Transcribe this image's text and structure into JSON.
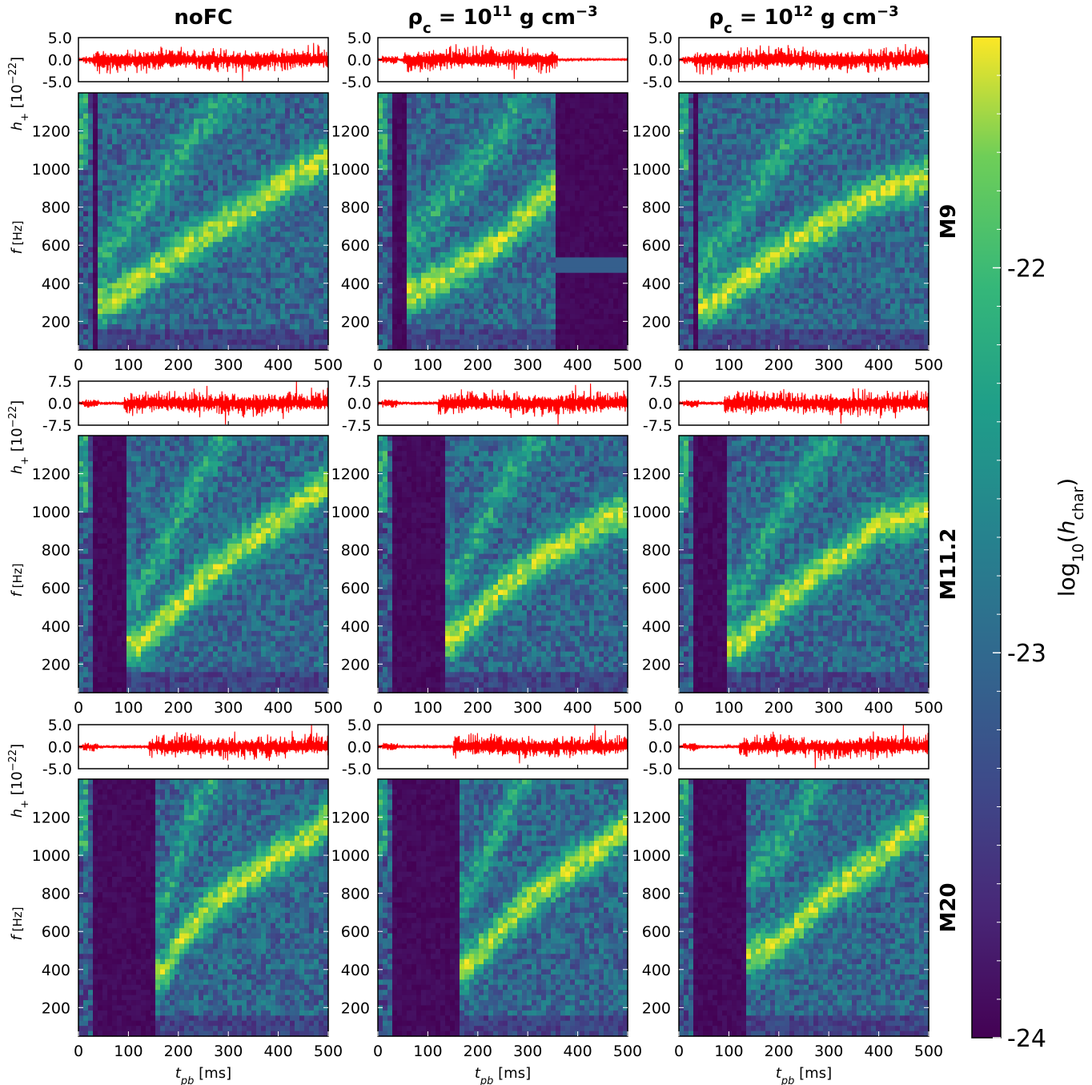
{
  "chart_data": {
    "type": "heatmap",
    "columns": [
      {
        "key": "nofc",
        "label": "noFC"
      },
      {
        "key": "rho11",
        "label": "ρ_c = 10^11 g cm^-3",
        "label_parts": [
          "ρ",
          "c",
          " = 10",
          "11",
          " g cm",
          "−3"
        ]
      },
      {
        "key": "rho12",
        "label": "ρ_c = 10^12 g cm^-3",
        "label_parts": [
          "ρ",
          "c",
          " = 10",
          "12",
          " g cm",
          "−3"
        ]
      }
    ],
    "rows": [
      {
        "label": "M9",
        "strain_ylim": [
          -5.0,
          5.0
        ],
        "strain_ticks": [
          "5.0",
          "0.0",
          "-5.0"
        ],
        "ridges": [
          [
            [
              60,
              300
            ],
            [
              200,
              560
            ],
            [
              280,
              700
            ],
            [
              350,
              800
            ],
            [
              420,
              950
            ],
            [
              500,
              1060
            ]
          ],
          [
            [
              80,
              350
            ],
            [
              200,
              540
            ],
            [
              260,
              650
            ],
            [
              280,
              720
            ],
            [
              350,
              900
            ],
            [
              500,
              1000
            ]
          ],
          [
            [
              60,
              280
            ],
            [
              140,
              440
            ],
            [
              220,
              600
            ],
            [
              300,
              720
            ],
            [
              380,
              860
            ],
            [
              500,
              960
            ]
          ]
        ],
        "late_cutoff": [
          500,
          360,
          500
        ]
      },
      {
        "label": "M11.2",
        "strain_ylim": [
          -7.5,
          7.5
        ],
        "strain_ticks": [
          "7.5",
          "0.0",
          "-7.5"
        ],
        "ridges": [
          [
            [
              120,
              300
            ],
            [
              190,
              480
            ],
            [
              250,
              650
            ],
            [
              320,
              800
            ],
            [
              400,
              950
            ],
            [
              500,
              1150
            ]
          ],
          [
            [
              150,
              330
            ],
            [
              250,
              600
            ],
            [
              320,
              740
            ],
            [
              400,
              880
            ],
            [
              460,
              960
            ],
            [
              500,
              1000
            ]
          ],
          [
            [
              120,
              300
            ],
            [
              200,
              520
            ],
            [
              260,
              640
            ],
            [
              300,
              720
            ],
            [
              400,
              930
            ],
            [
              500,
              1000
            ]
          ]
        ],
        "late_cutoff": [
          500,
          500,
          500
        ]
      },
      {
        "label": "M20",
        "strain_ylim": [
          -5.0,
          5.0
        ],
        "strain_ticks": [
          "5.0",
          "0.0",
          "-5.0"
        ],
        "ridges": [
          [
            [
              170,
              380
            ],
            [
              210,
              580
            ],
            [
              260,
              720
            ],
            [
              320,
              850
            ],
            [
              400,
              1000
            ],
            [
              470,
              1100
            ],
            [
              500,
              1200
            ]
          ],
          [
            [
              180,
              420
            ],
            [
              250,
              620
            ],
            [
              300,
              760
            ],
            [
              380,
              920
            ],
            [
              470,
              1090
            ],
            [
              500,
              1150
            ]
          ],
          [
            [
              150,
              480
            ],
            [
              210,
              560
            ],
            [
              300,
              800
            ],
            [
              380,
              950
            ],
            [
              460,
              1120
            ],
            [
              500,
              1200
            ]
          ]
        ],
        "late_cutoff": [
          500,
          500,
          500
        ]
      }
    ],
    "x_axis": {
      "label": "t_pb [ms]",
      "label_parts": [
        "t",
        "pb",
        " [ms]"
      ],
      "range": [
        0,
        500
      ],
      "ticks": [
        "0",
        "100",
        "200",
        "300",
        "400",
        "500"
      ]
    },
    "f_axis": {
      "label": "f [Hz]",
      "label_parts": [
        "f",
        " [Hz]"
      ],
      "range": [
        50,
        1400
      ],
      "ticks": [
        "200",
        "400",
        "600",
        "800",
        "1000",
        "1200"
      ]
    },
    "strain_axis": {
      "label": "h+ [10^-22]",
      "label_parts": [
        "h",
        "+",
        " [10",
        "−22",
        "]"
      ]
    },
    "colorbar": {
      "label": "log10(h_char)",
      "label_parts": [
        "log",
        "10",
        "(",
        "h",
        "char",
        ")"
      ],
      "range": [
        -24,
        -21.4
      ],
      "ticks": [
        "-22",
        "-23",
        "-24"
      ],
      "colormap": "viridis"
    },
    "colors": {
      "strain_line": "#ff0000",
      "viridis_low": "#440154",
      "viridis_high": "#fde725"
    }
  }
}
